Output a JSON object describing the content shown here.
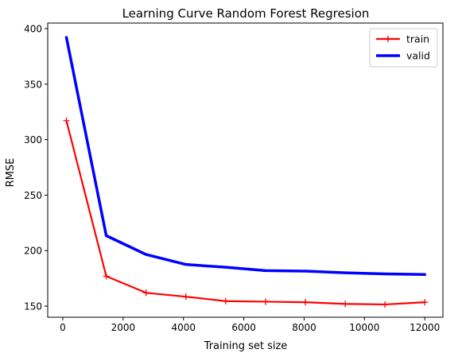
{
  "chart_data": {
    "type": "line",
    "title": "Learning Curve Random Forest Regresion",
    "xlabel": "Training set size",
    "ylabel": "RMSE",
    "xlim": [
      -500,
      12600
    ],
    "ylim": [
      140,
      405
    ],
    "xticks": [
      0,
      2000,
      4000,
      6000,
      8000,
      10000,
      12000
    ],
    "yticks": [
      150,
      200,
      250,
      300,
      350,
      400
    ],
    "grid": false,
    "legend_position": "upper right",
    "x": [
      120,
      1440,
      2760,
      4080,
      5400,
      6720,
      8040,
      9360,
      10680,
      12000
    ],
    "series": [
      {
        "name": "train",
        "color": "#ff0000",
        "marker": "plus",
        "values": [
          317,
          177,
          162,
          158.5,
          154.5,
          154,
          153.5,
          152,
          151.5,
          153.5
        ]
      },
      {
        "name": "valid",
        "color": "#0000ff",
        "marker": "none",
        "values": [
          392,
          213.5,
          196.5,
          187.5,
          185,
          182,
          181.5,
          180,
          179,
          178.5
        ]
      }
    ]
  }
}
